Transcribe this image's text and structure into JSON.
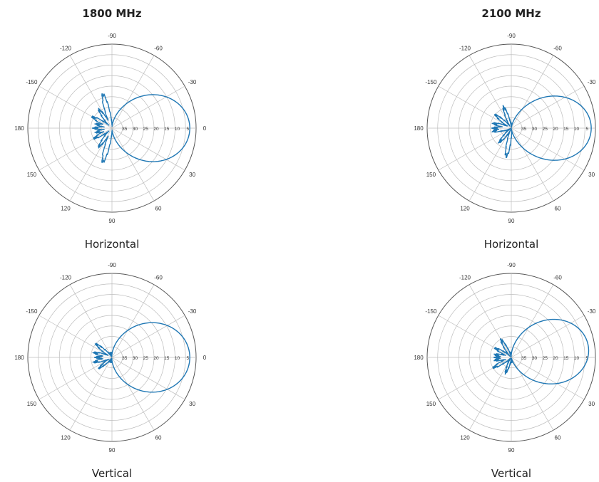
{
  "titles": {
    "left": "1800 MHz",
    "right": "2100 MHz"
  },
  "chart_data": [
    {
      "type": "polar",
      "band": "1800 MHz",
      "caption": "Horizontal",
      "angle_labels": [
        "-90",
        "-60",
        "-30",
        "0",
        "30",
        "60",
        "90",
        "120",
        "150",
        "180",
        "-150",
        "-120"
      ],
      "radial_labels": [
        "35",
        "30",
        "25",
        "20",
        "15",
        "10",
        "5"
      ],
      "radial_range": [
        0,
        40
      ],
      "series_color": "#1f77b4",
      "main_lobe": {
        "peak_deg": 0,
        "hpbw_deg": 65,
        "peak_level": 37
      },
      "sidelobes": [
        {
          "deg": -105,
          "level": 15
        },
        {
          "deg": 105,
          "level": 15
        },
        {
          "deg": -125,
          "level": 9
        },
        {
          "deg": 125,
          "level": 9
        },
        {
          "deg": -150,
          "level": 9
        },
        {
          "deg": 150,
          "level": 8
        },
        {
          "deg": -165,
          "level": 6
        },
        {
          "deg": 165,
          "level": 6
        },
        {
          "deg": 180,
          "level": 7
        }
      ]
    },
    {
      "type": "polar",
      "band": "2100 MHz",
      "caption": "Horizontal",
      "angle_labels": [
        "-90",
        "-60",
        "-30",
        "0",
        "30",
        "60",
        "90",
        "120",
        "150",
        "180",
        "-150",
        "-120"
      ],
      "radial_labels": [
        "35",
        "30",
        "25",
        "20",
        "15",
        "10",
        "5"
      ],
      "radial_range": [
        0,
        40
      ],
      "series_color": "#1f77b4",
      "main_lobe": {
        "peak_deg": 0,
        "hpbw_deg": 60,
        "peak_level": 38
      },
      "sidelobes": [
        {
          "deg": -110,
          "level": 9
        },
        {
          "deg": 100,
          "level": 12
        },
        {
          "deg": -140,
          "level": 8
        },
        {
          "deg": 130,
          "level": 7
        },
        {
          "deg": -165,
          "level": 7
        },
        {
          "deg": 170,
          "level": 7
        },
        {
          "deg": 180,
          "level": 7
        }
      ]
    },
    {
      "type": "polar",
      "band": "1800 MHz",
      "caption": "Vertical",
      "angle_labels": [
        "-90",
        "-60",
        "-30",
        "0",
        "30",
        "60",
        "90",
        "120",
        "150",
        "180",
        "-150",
        "-120"
      ],
      "radial_labels": [
        "35",
        "30",
        "25",
        "20",
        "15",
        "10",
        "5"
      ],
      "radial_range": [
        0,
        40
      ],
      "series_color": "#1f77b4",
      "main_lobe": {
        "peak_deg": 0,
        "hpbw_deg": 68,
        "peak_level": 37
      },
      "sidelobes": [
        {
          "deg": -140,
          "level": 8
        },
        {
          "deg": 140,
          "level": 6
        },
        {
          "deg": -165,
          "level": 7
        },
        {
          "deg": 165,
          "level": 7
        },
        {
          "deg": 180,
          "level": 6
        }
      ]
    },
    {
      "type": "polar",
      "band": "2100 MHz",
      "caption": "Vertical",
      "angle_labels": [
        "-90",
        "-60",
        "-30",
        "0",
        "30",
        "60",
        "90",
        "120",
        "150",
        "180",
        "-150",
        "-120"
      ],
      "radial_labels": [
        "35",
        "30",
        "25",
        "20",
        "15",
        "10",
        "5"
      ],
      "radial_range": [
        0,
        40
      ],
      "series_color": "#1f77b4",
      "main_lobe": {
        "peak_deg": -8,
        "hpbw_deg": 62,
        "peak_level": 37
      },
      "sidelobes": [
        {
          "deg": -120,
          "level": 8
        },
        {
          "deg": 110,
          "level": 6
        },
        {
          "deg": -150,
          "level": 7
        },
        {
          "deg": 150,
          "level": 8
        },
        {
          "deg": -170,
          "level": 6
        },
        {
          "deg": 170,
          "level": 6
        },
        {
          "deg": 180,
          "level": 6
        }
      ]
    }
  ]
}
